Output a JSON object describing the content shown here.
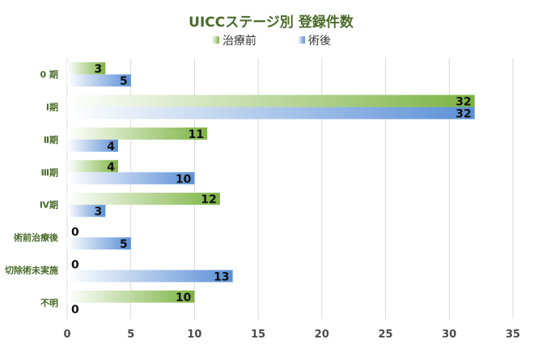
{
  "chart_data": {
    "type": "bar",
    "orientation": "horizontal",
    "title": "UICCステージ別 登録件数",
    "categories": [
      "0 期",
      "Ⅰ期",
      "Ⅱ期",
      "Ⅲ期",
      "Ⅳ期",
      "術前治療後",
      "切除術未実施",
      "不明"
    ],
    "series": [
      {
        "name": "治療前",
        "color": "#7cb342",
        "values": [
          3,
          32,
          11,
          4,
          12,
          0,
          0,
          10
        ]
      },
      {
        "name": "術後",
        "color": "#5b8fd6",
        "values": [
          5,
          32,
          4,
          10,
          3,
          5,
          13,
          0
        ]
      }
    ],
    "xlim": [
      0,
      35
    ],
    "xticks": [
      0,
      5,
      10,
      15,
      20,
      25,
      30,
      35
    ],
    "grid": true,
    "legend_position": "top",
    "data_labels": true
  }
}
